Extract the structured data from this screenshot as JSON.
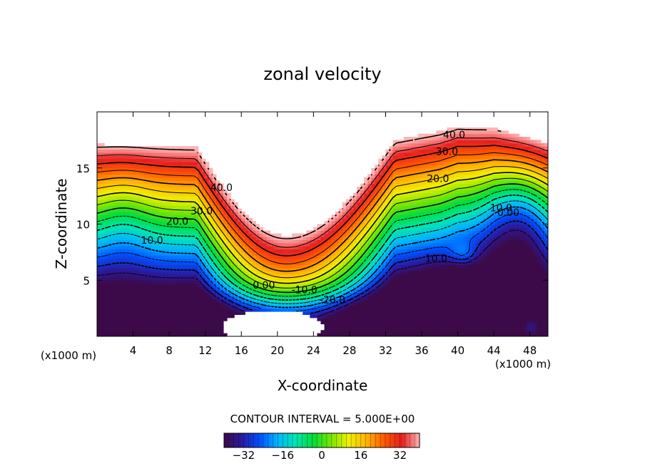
{
  "chart_data": {
    "type": "heatmap",
    "title": "zonal velocity",
    "xlabel": "X-coordinate",
    "ylabel": "Z-coordinate",
    "x_unit_left": "(x1000 m)",
    "x_unit_right": "(x1000 m)",
    "xlim": [
      0,
      50
    ],
    "ylim": [
      0,
      20
    ],
    "x_ticks": [
      4,
      8,
      12,
      16,
      20,
      24,
      28,
      32,
      36,
      40,
      44,
      48
    ],
    "y_ticks": [
      5,
      10,
      15
    ],
    "contour_interval_text": "CONTOUR INTERVAL = 5.000E+00",
    "colorbar": {
      "range": [
        -40,
        40
      ],
      "ticks": [
        -32,
        -16,
        0,
        16,
        32
      ],
      "colors": [
        "#3c0a48",
        "#2a1aa0",
        "#0050ff",
        "#00b4ff",
        "#00e6b4",
        "#00dc3c",
        "#78e600",
        "#f0f000",
        "#ffb400",
        "#ff5a00",
        "#e61e1e",
        "#ffb4b4"
      ]
    },
    "contour_labels": [
      {
        "text": "40.0",
        "x": 39.6,
        "y": 17.9
      },
      {
        "text": "30.0",
        "x": 38.8,
        "y": 16.4
      },
      {
        "text": "20.0",
        "x": 37.8,
        "y": 14.0
      },
      {
        "text": "40.0",
        "x": 13.8,
        "y": 13.2
      },
      {
        "text": "30.0",
        "x": 11.6,
        "y": 11.1
      },
      {
        "text": "20.0",
        "x": 8.9,
        "y": 10.2
      },
      {
        "text": "10.0",
        "x": 6.1,
        "y": 8.5
      },
      {
        "text": "10.0",
        "x": 37.6,
        "y": 6.9
      },
      {
        "text": "10.0",
        "x": 44.8,
        "y": 11.4
      },
      {
        "text": "0.00",
        "x": 45.6,
        "y": 11.0
      },
      {
        "text": "0.00",
        "x": 18.5,
        "y": 4.5
      },
      {
        "text": "-10.0",
        "x": 23.0,
        "y": 4.1
      },
      {
        "text": "-20.0",
        "x": 26.1,
        "y": 3.2
      }
    ]
  }
}
